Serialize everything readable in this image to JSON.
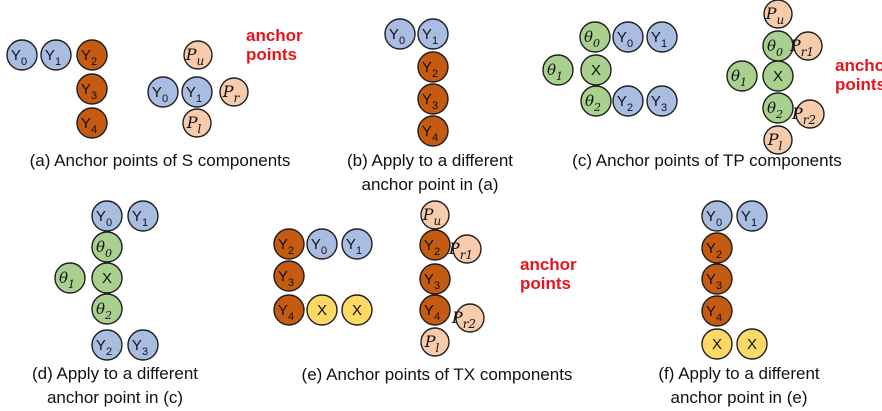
{
  "colors": {
    "Y": "#a9bde2",
    "R": "#c55a11",
    "G": "#a9d08e",
    "X": "#ffd966",
    "A": "#f8cbad",
    "red": "#e8141b"
  },
  "red_label": {
    "line1": "anchor",
    "line2": "points"
  },
  "panels": [
    {
      "id": "a",
      "caption": [
        "(a) Anchor points of S components"
      ],
      "show_red_label": true,
      "nodes": [
        {
          "t": "Y",
          "m": "0",
          "c": "Y"
        },
        {
          "t": "Y",
          "m": "1",
          "c": "Y"
        },
        {
          "t": "Y",
          "m": "2",
          "c": "R"
        },
        {
          "t": "Y",
          "m": "3",
          "c": "R"
        },
        {
          "t": "Y",
          "m": "4",
          "c": "R"
        },
        {
          "t": "P",
          "m": "u",
          "c": "A",
          "anchor": true
        },
        {
          "t": "Y",
          "m": "0",
          "c": "Y"
        },
        {
          "t": "Y",
          "m": "1",
          "c": "Y"
        },
        {
          "t": "P",
          "m": "r",
          "c": "A",
          "anchor": true
        },
        {
          "t": "P",
          "m": "l",
          "c": "A",
          "anchor": true
        }
      ]
    },
    {
      "id": "b",
      "caption": [
        "(b) Apply to a different",
        "anchor point in (a)"
      ],
      "show_red_label": false,
      "nodes": [
        {
          "t": "Y",
          "m": "0",
          "c": "Y"
        },
        {
          "t": "Y",
          "m": "1",
          "c": "Y"
        },
        {
          "t": "Y",
          "m": "2",
          "c": "R"
        },
        {
          "t": "Y",
          "m": "3",
          "c": "R"
        },
        {
          "t": "Y",
          "m": "4",
          "c": "R"
        }
      ]
    },
    {
      "id": "c",
      "caption": [
        "(c) Anchor points of TP components"
      ],
      "show_red_label": true,
      "nodes": [
        {
          "t": "θ",
          "m": "0",
          "c": "G",
          "theta": true
        },
        {
          "t": "Y",
          "m": "0",
          "c": "Y"
        },
        {
          "t": "Y",
          "m": "1",
          "c": "Y"
        },
        {
          "t": "θ",
          "m": "1",
          "c": "G",
          "theta": true
        },
        {
          "t": "X",
          "m": "",
          "c": "G"
        },
        {
          "t": "θ",
          "m": "2",
          "c": "G",
          "theta": true
        },
        {
          "t": "Y",
          "m": "2",
          "c": "Y"
        },
        {
          "t": "Y",
          "m": "3",
          "c": "Y"
        },
        {
          "t": "P",
          "m": "u",
          "c": "A",
          "anchor": true
        },
        {
          "t": "θ",
          "m": "0",
          "c": "G",
          "theta": true
        },
        {
          "t": "P",
          "m": "r1",
          "c": "A",
          "anchor": true
        },
        {
          "t": "θ",
          "m": "1",
          "c": "G",
          "theta": true
        },
        {
          "t": "X",
          "m": "",
          "c": "G"
        },
        {
          "t": "θ",
          "m": "2",
          "c": "G",
          "theta": true
        },
        {
          "t": "P",
          "m": "r2",
          "c": "A",
          "anchor": true
        },
        {
          "t": "P",
          "m": "l",
          "c": "A",
          "anchor": true
        }
      ]
    },
    {
      "id": "d",
      "caption": [
        "(d) Apply to a different",
        "anchor point in (c)"
      ],
      "show_red_label": false,
      "nodes": [
        {
          "t": "Y",
          "m": "0",
          "c": "Y"
        },
        {
          "t": "Y",
          "m": "1",
          "c": "Y"
        },
        {
          "t": "θ",
          "m": "0",
          "c": "G",
          "theta": true
        },
        {
          "t": "θ",
          "m": "1",
          "c": "G",
          "theta": true
        },
        {
          "t": "X",
          "m": "",
          "c": "G"
        },
        {
          "t": "θ",
          "m": "2",
          "c": "G",
          "theta": true
        },
        {
          "t": "Y",
          "m": "2",
          "c": "Y"
        },
        {
          "t": "Y",
          "m": "3",
          "c": "Y"
        }
      ]
    },
    {
      "id": "e",
      "caption": [
        "(e) Anchor points of TX components"
      ],
      "show_red_label": true,
      "nodes": [
        {
          "t": "Y",
          "m": "2",
          "c": "R"
        },
        {
          "t": "Y",
          "m": "0",
          "c": "Y"
        },
        {
          "t": "Y",
          "m": "1",
          "c": "Y"
        },
        {
          "t": "Y",
          "m": "3",
          "c": "R"
        },
        {
          "t": "Y",
          "m": "4",
          "c": "R"
        },
        {
          "t": "X",
          "m": "",
          "c": "X"
        },
        {
          "t": "X",
          "m": "",
          "c": "X"
        },
        {
          "t": "P",
          "m": "u",
          "c": "A",
          "anchor": true
        },
        {
          "t": "Y",
          "m": "2",
          "c": "R"
        },
        {
          "t": "P",
          "m": "r1",
          "c": "A",
          "anchor": true
        },
        {
          "t": "Y",
          "m": "3",
          "c": "R"
        },
        {
          "t": "Y",
          "m": "4",
          "c": "R"
        },
        {
          "t": "P",
          "m": "r2",
          "c": "A",
          "anchor": true
        },
        {
          "t": "P",
          "m": "l",
          "c": "A",
          "anchor": true
        }
      ]
    },
    {
      "id": "f",
      "caption": [
        "(f) Apply to a different",
        "anchor point in (e)"
      ],
      "show_red_label": false,
      "nodes": [
        {
          "t": "Y",
          "m": "0",
          "c": "Y"
        },
        {
          "t": "Y",
          "m": "1",
          "c": "Y"
        },
        {
          "t": "Y",
          "m": "2",
          "c": "R"
        },
        {
          "t": "Y",
          "m": "3",
          "c": "R"
        },
        {
          "t": "Y",
          "m": "4",
          "c": "R"
        },
        {
          "t": "X",
          "m": "",
          "c": "X"
        },
        {
          "t": "X",
          "m": "",
          "c": "X"
        }
      ]
    }
  ]
}
